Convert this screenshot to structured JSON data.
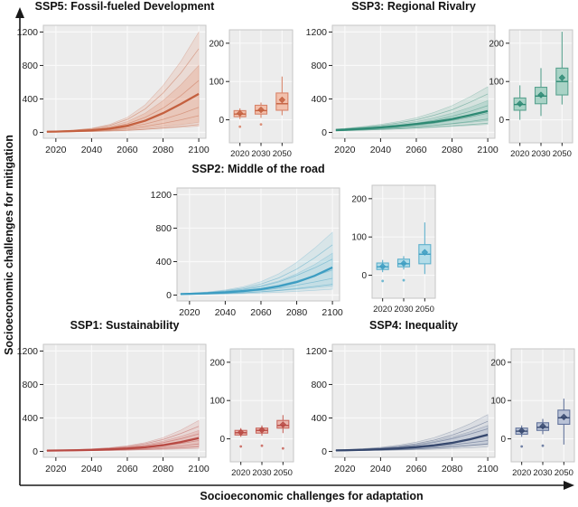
{
  "figure": {
    "y_axis_label": "Socioeconomic challenges for mitigation",
    "x_axis_label": "Socioeconomic challenges for adaptation"
  },
  "axes": {
    "fan": {
      "xticks": [
        2020,
        2040,
        2060,
        2080,
        2100
      ],
      "yticks": [
        0,
        400,
        800,
        1200
      ],
      "xlim": [
        2013,
        2104
      ],
      "ylim": [
        -70,
        1280
      ],
      "grid": true
    },
    "box": {
      "xticks": [
        2020,
        2030,
        2050
      ],
      "yticks": [
        0,
        100,
        200
      ],
      "ylim": [
        -60,
        235
      ],
      "grid": true
    }
  },
  "chart_data": [
    {
      "id": "ssp5",
      "type": "area",
      "title": "SSP5: Fossil-fueled Development",
      "colors": {
        "line": "#c4603f",
        "fill": "#e59678",
        "box_fill": "#f2c0ac",
        "box_stroke": "#d8846a"
      },
      "fan": {
        "x": [
          2015,
          2020,
          2030,
          2040,
          2050,
          2060,
          2070,
          2080,
          2090,
          2100
        ],
        "center": [
          8,
          10,
          16,
          25,
          45,
          80,
          140,
          230,
          340,
          460
        ],
        "bands": [
          {
            "upper": [
              12,
              16,
              28,
              50,
              95,
              180,
              330,
              560,
              850,
              1200
            ],
            "lower": [
              4,
              5,
              8,
              12,
              18,
              26,
              37,
              50,
              62,
              75
            ]
          },
          {
            "upper": [
              10,
              13,
              22,
              38,
              70,
              130,
              230,
              380,
              570,
              800
            ],
            "lower": [
              5,
              6,
              10,
              15,
              23,
              34,
              50,
              70,
              93,
              120
            ]
          }
        ],
        "lines": [
          [
            11,
            14,
            25,
            44,
            82,
            155,
            280,
            470,
            710,
            1000
          ],
          [
            9,
            12,
            19,
            32,
            57,
            103,
            180,
            290,
            440,
            620
          ],
          [
            7,
            9,
            14,
            22,
            37,
            62,
            100,
            155,
            222,
            300
          ],
          [
            6,
            8,
            12,
            18,
            28,
            45,
            72,
            108,
            150,
            200
          ],
          [
            4,
            5,
            8,
            11,
            16,
            24,
            36,
            52,
            72,
            95
          ]
        ]
      },
      "box": {
        "years": [
          2020,
          2030,
          2050
        ],
        "stats": [
          {
            "whislo": 2,
            "q1": 8,
            "med": 15,
            "q3": 24,
            "whishi": 30,
            "mean": 17,
            "outliers": [
              -18
            ]
          },
          {
            "whislo": 5,
            "q1": 15,
            "med": 24,
            "q3": 38,
            "whishi": 45,
            "mean": 26,
            "outliers": [
              -12
            ]
          },
          {
            "whislo": 12,
            "q1": 25,
            "med": 42,
            "q3": 70,
            "whishi": 113,
            "mean": 52,
            "outliers": []
          }
        ]
      }
    },
    {
      "id": "ssp3",
      "type": "area",
      "title": "SSP3: Regional Rivalry",
      "colors": {
        "line": "#2e8a74",
        "fill": "#7bbcab",
        "box_fill": "#a9d3c6",
        "box_stroke": "#5aa28f"
      },
      "fan": {
        "x": [
          2015,
          2020,
          2030,
          2040,
          2050,
          2060,
          2070,
          2080,
          2090,
          2100
        ],
        "center": [
          28,
          32,
          45,
          60,
          78,
          100,
          125,
          160,
          205,
          255
        ],
        "bands": [
          {
            "upper": [
              40,
              48,
              70,
              95,
              130,
              175,
              240,
              320,
              425,
              545
            ],
            "lower": [
              18,
              20,
              26,
              33,
              41,
              50,
              60,
              71,
              83,
              95
            ]
          },
          {
            "upper": [
              34,
              40,
              56,
              75,
              100,
              130,
              175,
              230,
              300,
              380
            ],
            "lower": [
              22,
              25,
              33,
              43,
              55,
              68,
              84,
              101,
              120,
              140
            ]
          }
        ],
        "lines": [
          [
            36,
            43,
            62,
            84,
            113,
            150,
            205,
            270,
            360,
            460
          ],
          [
            30,
            35,
            49,
            65,
            85,
            110,
            145,
            192,
            250,
            320
          ],
          [
            26,
            30,
            40,
            52,
            67,
            85,
            110,
            143,
            183,
            230
          ],
          [
            23,
            26,
            34,
            43,
            54,
            67,
            84,
            105,
            130,
            160
          ],
          [
            19,
            22,
            28,
            35,
            43,
            53,
            66,
            80,
            94,
            110
          ]
        ]
      },
      "box": {
        "years": [
          2020,
          2030,
          2050
        ],
        "stats": [
          {
            "whislo": 0,
            "q1": 25,
            "med": 40,
            "q3": 57,
            "whishi": 90,
            "mean": 42,
            "outliers": []
          },
          {
            "whislo": 10,
            "q1": 42,
            "med": 62,
            "q3": 85,
            "whishi": 135,
            "mean": 65,
            "outliers": []
          },
          {
            "whislo": 40,
            "q1": 65,
            "med": 100,
            "q3": 135,
            "whishi": 230,
            "mean": 110,
            "outliers": []
          }
        ]
      }
    },
    {
      "id": "ssp2",
      "type": "area",
      "title": "SSP2: Middle of the road",
      "colors": {
        "line": "#3d9dc2",
        "fill": "#8ecbdd",
        "box_fill": "#b3dde9",
        "box_stroke": "#5fb0cc"
      },
      "fan": {
        "x": [
          2015,
          2020,
          2030,
          2040,
          2050,
          2060,
          2070,
          2080,
          2090,
          2100
        ],
        "center": [
          12,
          15,
          22,
          32,
          48,
          70,
          105,
          155,
          230,
          330
        ],
        "bands": [
          {
            "upper": [
              18,
              23,
              38,
              62,
              100,
              160,
              255,
              390,
              560,
              750
            ],
            "lower": [
              5,
              6,
              9,
              13,
              18,
              25,
              33,
              44,
              56,
              70
            ]
          },
          {
            "upper": [
              15,
              19,
              30,
              47,
              73,
              112,
              170,
              255,
              365,
              500
            ],
            "lower": [
              7,
              8,
              12,
              18,
              26,
              37,
              52,
              70,
              90,
              110
            ]
          }
        ],
        "lines": [
          [
            16,
            21,
            33,
            53,
            84,
            132,
            205,
            310,
            445,
            600
          ],
          [
            14,
            18,
            28,
            43,
            67,
            103,
            158,
            235,
            325,
            430
          ],
          [
            12,
            15,
            23,
            34,
            52,
            78,
            118,
            170,
            230,
            300
          ],
          [
            10,
            12,
            18,
            26,
            38,
            56,
            82,
            118,
            157,
            200
          ],
          [
            8,
            10,
            14,
            19,
            27,
            39,
            56,
            78,
            103,
            130
          ]
        ]
      },
      "box": {
        "years": [
          2020,
          2030,
          2050
        ],
        "stats": [
          {
            "whislo": 8,
            "q1": 15,
            "med": 22,
            "q3": 32,
            "whishi": 40,
            "mean": 23,
            "outliers": [
              -15
            ]
          },
          {
            "whislo": 15,
            "q1": 22,
            "med": 30,
            "q3": 42,
            "whishi": 50,
            "mean": 31,
            "outliers": [
              -13
            ]
          },
          {
            "whislo": 3,
            "q1": 30,
            "med": 55,
            "q3": 80,
            "whishi": 138,
            "mean": 60,
            "outliers": []
          }
        ]
      }
    },
    {
      "id": "ssp1",
      "type": "area",
      "title": "SSP1: Sustainability",
      "colors": {
        "line": "#b84a44",
        "fill": "#de8d84",
        "box_fill": "#eab6ae",
        "box_stroke": "#c9675e"
      },
      "fan": {
        "x": [
          2015,
          2020,
          2030,
          2040,
          2050,
          2060,
          2070,
          2080,
          2090,
          2100
        ],
        "center": [
          10,
          11,
          14,
          18,
          25,
          35,
          50,
          75,
          112,
          160
        ],
        "bands": [
          {
            "upper": [
              14,
              16,
              22,
              31,
              45,
              68,
              105,
              165,
              255,
              370
            ],
            "lower": [
              5,
              6,
              7,
              9,
              12,
              15,
              19,
              24,
              29,
              35
            ]
          },
          {
            "upper": [
              12,
              14,
              18,
              25,
              36,
              53,
              80,
              122,
              180,
              250
            ],
            "lower": [
              7,
              8,
              10,
              12,
              16,
              22,
              29,
              38,
              48,
              60
            ]
          }
        ],
        "lines": [
          [
            13,
            15,
            20,
            28,
            40,
            60,
            92,
            142,
            215,
            300
          ],
          [
            11,
            13,
            17,
            23,
            32,
            47,
            70,
            105,
            152,
            210
          ],
          [
            9,
            10,
            13,
            17,
            23,
            32,
            46,
            67,
            95,
            130
          ],
          [
            8,
            9,
            11,
            14,
            18,
            25,
            34,
            48,
            66,
            90
          ],
          [
            6,
            7,
            8,
            10,
            13,
            17,
            23,
            31,
            42,
            55
          ]
        ]
      },
      "box": {
        "years": [
          2020,
          2030,
          2050
        ],
        "stats": [
          {
            "whislo": 5,
            "q1": 10,
            "med": 16,
            "q3": 22,
            "whishi": 28,
            "mean": 17,
            "outliers": [
              -20
            ]
          },
          {
            "whislo": 8,
            "q1": 15,
            "med": 22,
            "q3": 28,
            "whishi": 35,
            "mean": 23,
            "outliers": [
              -18
            ]
          },
          {
            "whislo": 15,
            "q1": 28,
            "med": 35,
            "q3": 48,
            "whishi": 62,
            "mean": 37,
            "outliers": [
              -25
            ]
          }
        ]
      }
    },
    {
      "id": "ssp4",
      "type": "area",
      "title": "SSP4: Inequality",
      "colors": {
        "line": "#36486e",
        "fill": "#97a5c0",
        "box_fill": "#b9c2d6",
        "box_stroke": "#63749c"
      },
      "fan": {
        "x": [
          2015,
          2020,
          2030,
          2040,
          2050,
          2060,
          2070,
          2080,
          2090,
          2100
        ],
        "center": [
          12,
          14,
          19,
          26,
          37,
          52,
          73,
          102,
          145,
          200
        ],
        "bands": [
          {
            "upper": [
              18,
              22,
              33,
              50,
              75,
              112,
              165,
              240,
              330,
              440
            ],
            "lower": [
              6,
              7,
              9,
              12,
              16,
              21,
              27,
              35,
              44,
              55
            ]
          },
          {
            "upper": [
              15,
              18,
              26,
              38,
              56,
              82,
              120,
              172,
              235,
              310
            ],
            "lower": [
              8,
              9,
              12,
              16,
              22,
              30,
              41,
              54,
              69,
              85
            ]
          }
        ],
        "lines": [
          [
            16,
            19,
            28,
            42,
            62,
            92,
            135,
            195,
            270,
            360
          ],
          [
            14,
            17,
            24,
            35,
            51,
            74,
            108,
            152,
            208,
            270
          ],
          [
            12,
            14,
            19,
            27,
            38,
            55,
            78,
            110,
            148,
            190
          ],
          [
            10,
            12,
            16,
            21,
            29,
            40,
            56,
            78,
            103,
            130
          ],
          [
            8,
            9,
            12,
            16,
            21,
            29,
            40,
            55,
            71,
            90
          ]
        ]
      },
      "box": {
        "years": [
          2020,
          2030,
          2050
        ],
        "stats": [
          {
            "whislo": 5,
            "q1": 12,
            "med": 20,
            "q3": 28,
            "whishi": 35,
            "mean": 21,
            "outliers": [
              -20
            ]
          },
          {
            "whislo": 12,
            "q1": 22,
            "med": 30,
            "q3": 42,
            "whishi": 52,
            "mean": 33,
            "outliers": [
              -18
            ]
          },
          {
            "whislo": -15,
            "q1": 38,
            "med": 55,
            "q3": 75,
            "whishi": 105,
            "mean": 57,
            "outliers": []
          }
        ]
      }
    }
  ],
  "style": {
    "panel_bg": "#ececec",
    "panel_border": "#c6c6c6",
    "grid_color": "#f9f9f9",
    "axis_color": "#1a1a1a",
    "tick_color": "#222222"
  }
}
